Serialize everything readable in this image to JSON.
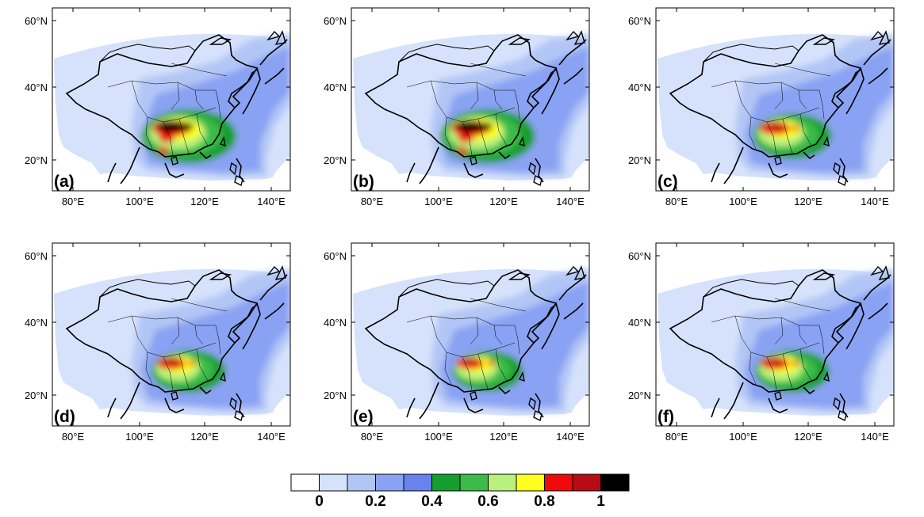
{
  "panels": [
    {
      "label": "(a)",
      "intensity": 1.0
    },
    {
      "label": "(b)",
      "intensity": 1.0
    },
    {
      "label": "(c)",
      "intensity": 0.8
    },
    {
      "label": "(d)",
      "intensity": 0.75
    },
    {
      "label": "(e)",
      "intensity": 0.7
    },
    {
      "label": "(f)",
      "intensity": 0.75
    }
  ],
  "axes": {
    "lon_ticks": [
      "80°E",
      "100°E",
      "120°E",
      "140°E"
    ],
    "lat_ticks": [
      "20°N",
      "40°N",
      "60°N"
    ]
  },
  "colorbar": {
    "colors": [
      "#ffffff",
      "#d6e2fb",
      "#b2c6f6",
      "#8aa2f3",
      "#6a82ee",
      "#159e2e",
      "#3bbb4a",
      "#b8f17d",
      "#ffff1e",
      "#ee0a0a",
      "#b80c14",
      "#000000"
    ],
    "tick_labels": [
      "0",
      "0.2",
      "0.4",
      "0.6",
      "0.8",
      "1"
    ]
  }
}
